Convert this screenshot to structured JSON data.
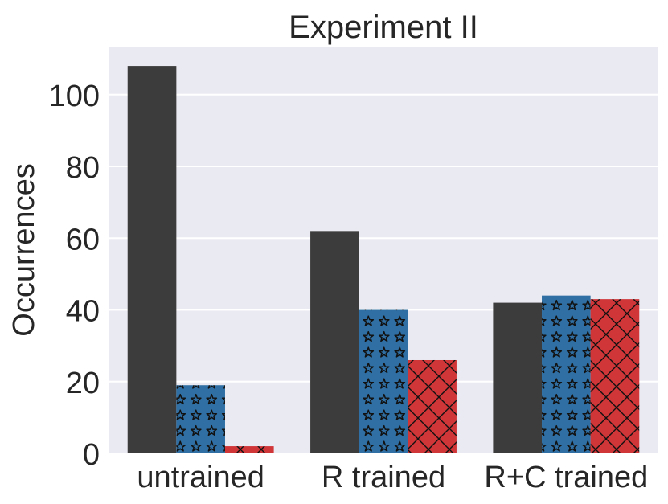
{
  "chart_data": {
    "type": "bar",
    "title": "Experiment II",
    "xlabel": "",
    "ylabel": "Occurrences",
    "categories": [
      "untrained",
      "R trained",
      "R+C trained"
    ],
    "ylim": [
      0,
      113.4
    ],
    "yticks": [
      0,
      20,
      40,
      60,
      80,
      100
    ],
    "grid": true,
    "legend": "none",
    "series": [
      {
        "name": "series 1",
        "values": [
          108,
          62,
          42
        ],
        "color": "#3c3c3c",
        "pattern": "none"
      },
      {
        "name": "series 2",
        "values": [
          19,
          40,
          44
        ],
        "color": "#2f6fa3",
        "pattern": "stars"
      },
      {
        "name": "series 3",
        "values": [
          2,
          26,
          43
        ],
        "color": "#d03538",
        "pattern": "cross-hatch"
      }
    ],
    "background_color": "#eaeaf2"
  }
}
